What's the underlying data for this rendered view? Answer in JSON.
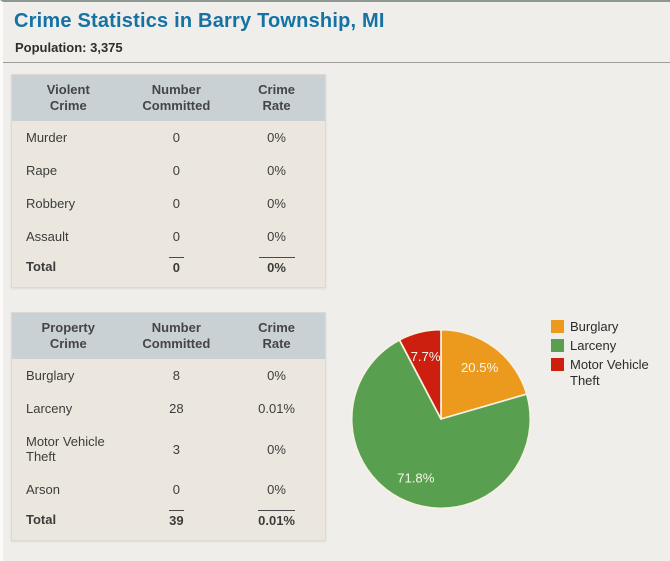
{
  "page": {
    "title": "Crime Statistics in Barry Township, MI",
    "population": "Population: 3,375"
  },
  "violent_table": {
    "headers": [
      "Violent\nCrime",
      "Number\nCommitted",
      "Crime\nRate"
    ],
    "rows": [
      {
        "crime": "Murder",
        "number": "0",
        "rate": "0%"
      },
      {
        "crime": "Rape",
        "number": "0",
        "rate": "0%"
      },
      {
        "crime": "Robbery",
        "number": "0",
        "rate": "0%"
      },
      {
        "crime": "Assault",
        "number": "0",
        "rate": "0%"
      }
    ],
    "total": {
      "crime": "Total",
      "number": "0",
      "rate": "0%"
    }
  },
  "property_table": {
    "headers": [
      "Property\nCrime",
      "Number\nCommitted",
      "Crime\nRate"
    ],
    "rows": [
      {
        "crime": "Burglary",
        "number": "8",
        "rate": "0%"
      },
      {
        "crime": "Larceny",
        "number": "28",
        "rate": "0.01%"
      },
      {
        "crime": "Motor Vehicle Theft",
        "number": "3",
        "rate": "0%"
      },
      {
        "crime": "Arson",
        "number": "0",
        "rate": "0%"
      }
    ],
    "total": {
      "crime": "Total",
      "number": "39",
      "rate": "0.01%"
    }
  },
  "chart_data": {
    "type": "pie",
    "slices": [
      {
        "label": "Burglary",
        "value": 20.5,
        "display": "20.5%",
        "color": "#EC9A1E"
      },
      {
        "label": "Larceny",
        "value": 71.8,
        "display": "71.8%",
        "color": "#58A04F"
      },
      {
        "label": "Motor Vehicle Theft",
        "value": 7.7,
        "display": "7.7%",
        "color": "#CD1F10"
      }
    ],
    "start_angle_deg": 0,
    "direction": "clockwise",
    "legend_position": "right",
    "label_color": "#F9F5E8",
    "slice_stroke": "#F6F1E3"
  },
  "colors": {
    "title_blue": "#1572A5",
    "table_header_bg": "#CAD1D5",
    "table_body_bg": "#EBE7DE",
    "page_bg": "#EFEEEA",
    "divider": "#9E9E9A"
  }
}
